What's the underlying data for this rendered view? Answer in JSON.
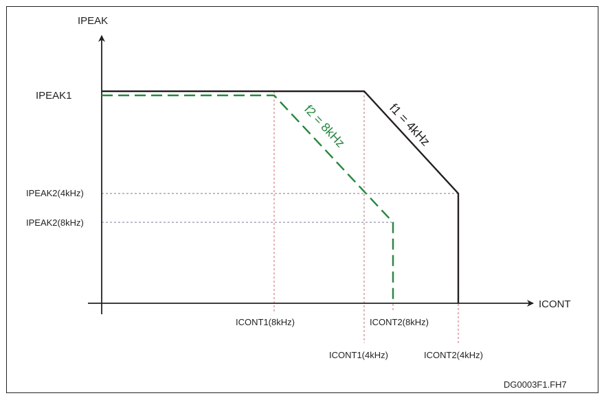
{
  "diagram": {
    "y_axis_label": "IPEAK",
    "x_axis_label": "ICONT",
    "y_levels": {
      "peak1": "IPEAK1",
      "peak2_4khz": "IPEAK2(4kHz)",
      "peak2_8khz": "IPEAK2(8kHz)"
    },
    "x_levels": {
      "cont1_8khz": "ICONT1(8kHz)",
      "cont2_8khz": "ICONT2(8kHz)",
      "cont1_4khz": "ICONT1(4kHz)",
      "cont2_4khz": "ICONT2(4kHz)"
    },
    "curve_f1_label": "f1 = 4kHz",
    "curve_f2_label": "f2 = 8kHz",
    "figure_id": "DG0003F1.FH7"
  },
  "colors": {
    "f1_curve": "#231f20",
    "f2_curve": "#1e8a3a",
    "guide_vertical": "#e03c3c",
    "guide_horizontal": "#4a4f7a"
  }
}
